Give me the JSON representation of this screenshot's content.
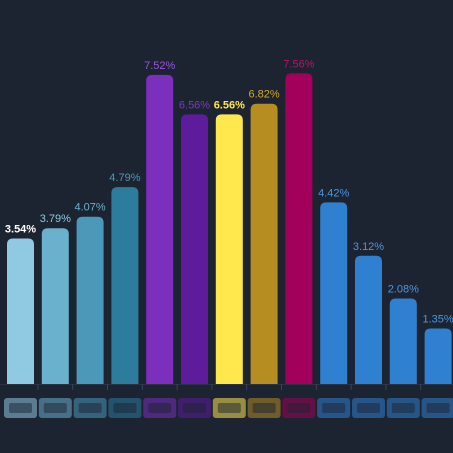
{
  "chart_data": {
    "type": "bar",
    "categories": [
      null,
      null,
      null,
      null,
      null,
      null,
      null,
      null,
      null,
      null,
      null,
      null,
      null
    ],
    "values": [
      3.54,
      3.79,
      4.07,
      4.79,
      7.52,
      6.56,
      6.56,
      6.82,
      7.56,
      4.42,
      3.12,
      2.08,
      1.35
    ],
    "value_labels": [
      "3.54%",
      "3.79%",
      "4.07%",
      "4.79%",
      "7.52%",
      "6.56%",
      "6.56%",
      "6.82%",
      "7.56%",
      "4.42%",
      "3.12%",
      "2.08%",
      "1.35%"
    ],
    "colors": [
      "#8fc9e2",
      "#6ab1cd",
      "#4b98b9",
      "#2c7c9e",
      "#7a2fbd",
      "#5d1c9b",
      "#ffe74e",
      "#b58d20",
      "#a2005a",
      "#2f80d0",
      "#2f80d0",
      "#2f80d0",
      "#2f80d0"
    ],
    "label_colors": [
      "#ffffff",
      "#8fc9e2",
      "#6ab1cd",
      "#4b98b9",
      "#9b55e0",
      "#7b3ac0",
      "#ffe74e",
      "#d4a82a",
      "#c0106e",
      "#4a98e0",
      "#4a98e0",
      "#4a98e0",
      "#4a98e0"
    ]
  }
}
